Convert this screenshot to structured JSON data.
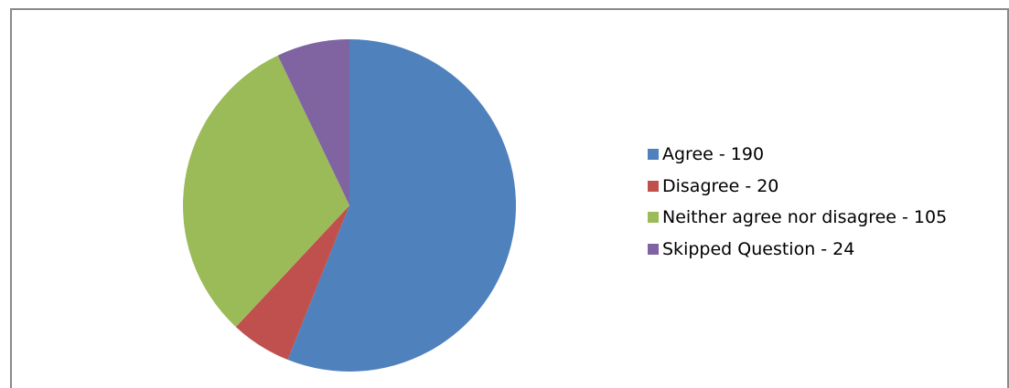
{
  "chart_data": {
    "type": "pie",
    "title": "",
    "legend_position": "right",
    "series": [
      {
        "name": "Agree - 190",
        "category": "Agree",
        "value": 190,
        "color": "#4f81bd"
      },
      {
        "name": "Disagree - 20",
        "category": "Disagree",
        "value": 20,
        "color": "#c0504d"
      },
      {
        "name": "Neither agree nor disagree - 105",
        "category": "Neither agree nor disagree",
        "value": 105,
        "color": "#9bbb59"
      },
      {
        "name": "Skipped Question - 24",
        "category": "Skipped Question",
        "value": 24,
        "color": "#8064a2"
      }
    ]
  }
}
